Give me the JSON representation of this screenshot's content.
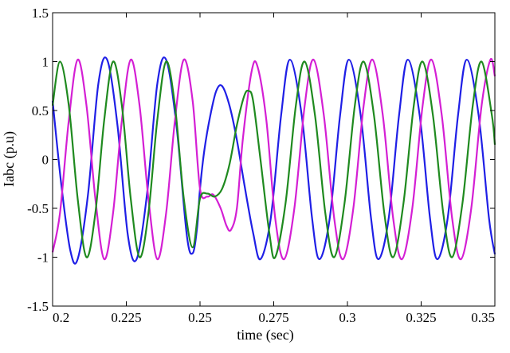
{
  "chart_data": {
    "type": "line",
    "title": "",
    "xlabel": "time (sec)",
    "ylabel": "Iabc (p.u)",
    "xlim": [
      0.2,
      0.35
    ],
    "ylim": [
      -1.5,
      1.5
    ],
    "x_ticks": [
      0.2,
      0.225,
      0.25,
      0.275,
      0.3,
      0.325,
      0.35
    ],
    "x_tick_labels": [
      "0.2",
      "0.225",
      "0.25",
      "0.275",
      "0.3",
      "0.325",
      "0.35"
    ],
    "y_ticks": [
      -1.5,
      -1,
      -0.5,
      0,
      0.5,
      1,
      1.5
    ],
    "y_tick_labels": [
      "-1.5",
      "-1",
      "-0.5",
      "0",
      "0.5",
      "1",
      "1.5"
    ],
    "grid": false,
    "legend": "none",
    "series": [
      {
        "color": "#1f1fe6",
        "points": [
          [
            0.2,
            0.6
          ],
          [
            0.203,
            -0.27
          ],
          [
            0.206,
            -0.93
          ],
          [
            0.2085,
            -1.02
          ],
          [
            0.212,
            -0.36
          ],
          [
            0.2155,
            0.77
          ],
          [
            0.2185,
            1.02
          ],
          [
            0.222,
            0.35
          ],
          [
            0.2255,
            -0.77
          ],
          [
            0.2285,
            -1.02
          ],
          [
            0.232,
            -0.36
          ],
          [
            0.2355,
            0.77
          ],
          [
            0.2385,
            1.02
          ],
          [
            0.242,
            0.35
          ],
          [
            0.2455,
            -0.77
          ],
          [
            0.2475,
            -0.96
          ],
          [
            0.249,
            -0.7
          ],
          [
            0.25,
            -0.3
          ],
          [
            0.2515,
            0.1
          ],
          [
            0.2535,
            0.45
          ],
          [
            0.2555,
            0.7
          ],
          [
            0.2575,
            0.75
          ],
          [
            0.26,
            0.55
          ],
          [
            0.2625,
            0.2
          ],
          [
            0.265,
            -0.25
          ],
          [
            0.268,
            -0.75
          ],
          [
            0.2705,
            -1.02
          ],
          [
            0.274,
            -0.6
          ],
          [
            0.2775,
            0.45
          ],
          [
            0.2805,
            1.02
          ],
          [
            0.2845,
            0.45
          ],
          [
            0.288,
            -0.6
          ],
          [
            0.2905,
            -1.02
          ],
          [
            0.294,
            -0.6
          ],
          [
            0.2975,
            0.45
          ],
          [
            0.3005,
            1.02
          ],
          [
            0.3045,
            0.45
          ],
          [
            0.308,
            -0.6
          ],
          [
            0.3105,
            -1.02
          ],
          [
            0.314,
            -0.6
          ],
          [
            0.3175,
            0.45
          ],
          [
            0.3205,
            1.02
          ],
          [
            0.3245,
            0.45
          ],
          [
            0.328,
            -0.6
          ],
          [
            0.3305,
            -1.02
          ],
          [
            0.334,
            -0.6
          ],
          [
            0.3375,
            0.45
          ],
          [
            0.3405,
            1.02
          ],
          [
            0.3445,
            0.45
          ],
          [
            0.348,
            -0.6
          ],
          [
            0.35,
            -0.97
          ]
        ]
      },
      {
        "color": "#d41fd4",
        "points": [
          [
            0.2,
            -0.95
          ],
          [
            0.2025,
            -0.55
          ],
          [
            0.2055,
            0.4
          ],
          [
            0.2085,
            1.02
          ],
          [
            0.2115,
            0.55
          ],
          [
            0.2145,
            -0.4
          ],
          [
            0.2175,
            -1.02
          ],
          [
            0.2205,
            -0.55
          ],
          [
            0.2235,
            0.4
          ],
          [
            0.2265,
            1.02
          ],
          [
            0.2295,
            0.55
          ],
          [
            0.2325,
            -0.4
          ],
          [
            0.2355,
            -1.02
          ],
          [
            0.2385,
            -0.55
          ],
          [
            0.2415,
            0.4
          ],
          [
            0.2445,
            1.02
          ],
          [
            0.2475,
            0.6
          ],
          [
            0.25,
            -0.3
          ],
          [
            0.2525,
            -0.38
          ],
          [
            0.2545,
            -0.36
          ],
          [
            0.257,
            -0.5
          ],
          [
            0.259,
            -0.68
          ],
          [
            0.2605,
            -0.72
          ],
          [
            0.2625,
            -0.5
          ],
          [
            0.2645,
            0.2
          ],
          [
            0.2675,
            0.9
          ],
          [
            0.2695,
            0.95
          ],
          [
            0.2725,
            0.4
          ],
          [
            0.2755,
            -0.6
          ],
          [
            0.2785,
            -1.02
          ],
          [
            0.282,
            -0.5
          ],
          [
            0.2855,
            0.55
          ],
          [
            0.2885,
            1.02
          ],
          [
            0.292,
            0.45
          ],
          [
            0.2955,
            -0.6
          ],
          [
            0.2985,
            -1.02
          ],
          [
            0.302,
            -0.5
          ],
          [
            0.3055,
            0.55
          ],
          [
            0.3085,
            1.02
          ],
          [
            0.312,
            0.45
          ],
          [
            0.3155,
            -0.6
          ],
          [
            0.3185,
            -1.02
          ],
          [
            0.322,
            -0.5
          ],
          [
            0.3255,
            0.55
          ],
          [
            0.3285,
            1.02
          ],
          [
            0.332,
            0.45
          ],
          [
            0.3355,
            -0.6
          ],
          [
            0.3385,
            -1.02
          ],
          [
            0.342,
            -0.5
          ],
          [
            0.3455,
            0.55
          ],
          [
            0.3485,
            1.02
          ],
          [
            0.35,
            0.85
          ]
        ]
      },
      {
        "color": "#1f8a1f",
        "points": [
          [
            0.2,
            0.55
          ],
          [
            0.2025,
            1.0
          ],
          [
            0.2055,
            0.55
          ],
          [
            0.2085,
            -0.4
          ],
          [
            0.2115,
            -1.0
          ],
          [
            0.2145,
            -0.55
          ],
          [
            0.2175,
            0.4
          ],
          [
            0.2205,
            1.0
          ],
          [
            0.2235,
            0.55
          ],
          [
            0.2265,
            -0.4
          ],
          [
            0.2295,
            -1.0
          ],
          [
            0.2325,
            -0.55
          ],
          [
            0.2355,
            0.4
          ],
          [
            0.2385,
            1.0
          ],
          [
            0.2415,
            0.55
          ],
          [
            0.2445,
            -0.4
          ],
          [
            0.2475,
            -0.9
          ],
          [
            0.25,
            -0.4
          ],
          [
            0.2525,
            -0.35
          ],
          [
            0.255,
            -0.38
          ],
          [
            0.2575,
            -0.3
          ],
          [
            0.26,
            -0.05
          ],
          [
            0.2625,
            0.35
          ],
          [
            0.265,
            0.65
          ],
          [
            0.2665,
            0.7
          ],
          [
            0.268,
            0.6
          ],
          [
            0.2705,
            0.0
          ],
          [
            0.2735,
            -0.75
          ],
          [
            0.2755,
            -1.0
          ],
          [
            0.279,
            -0.45
          ],
          [
            0.2825,
            0.55
          ],
          [
            0.2855,
            1.0
          ],
          [
            0.289,
            0.45
          ],
          [
            0.2925,
            -0.55
          ],
          [
            0.2955,
            -1.0
          ],
          [
            0.299,
            -0.45
          ],
          [
            0.3025,
            0.55
          ],
          [
            0.3055,
            1.0
          ],
          [
            0.309,
            0.45
          ],
          [
            0.3125,
            -0.55
          ],
          [
            0.3155,
            -1.0
          ],
          [
            0.319,
            -0.45
          ],
          [
            0.3225,
            0.55
          ],
          [
            0.3255,
            1.0
          ],
          [
            0.329,
            0.45
          ],
          [
            0.3325,
            -0.55
          ],
          [
            0.3355,
            -1.0
          ],
          [
            0.339,
            -0.45
          ],
          [
            0.3425,
            0.55
          ],
          [
            0.3455,
            1.0
          ],
          [
            0.349,
            0.45
          ],
          [
            0.35,
            0.15
          ]
        ]
      }
    ]
  }
}
